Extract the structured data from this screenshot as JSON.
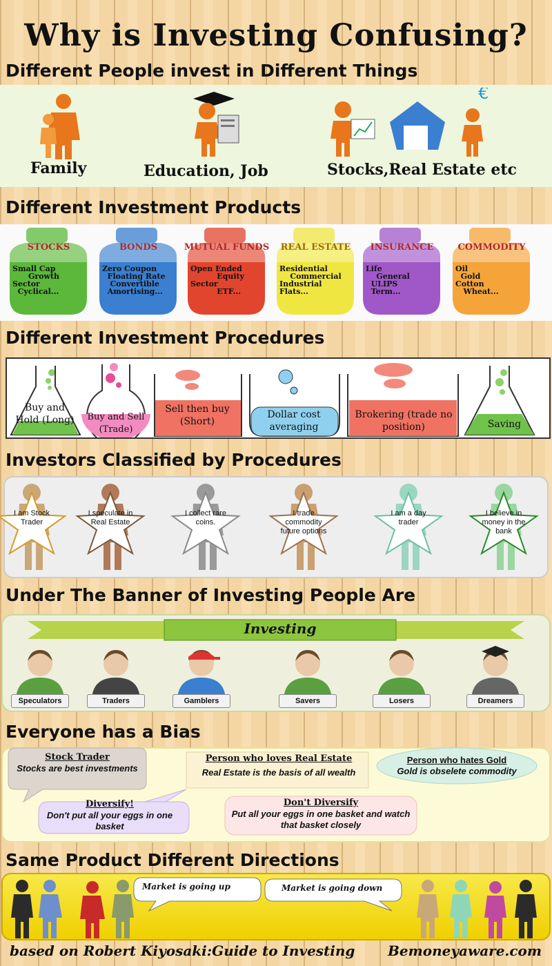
{
  "title": "Why is Investing Confusing?",
  "sections": [
    "Different People invest in Different Things",
    "Different Investment Products",
    "Different Investment Procedures",
    "Investors Classified by Procedures",
    "Under The Banner of Investing People Are",
    "Everyone has a Bias",
    "Same Product Different Directions"
  ],
  "things": [
    "Family",
    "Education, Job",
    "Stocks,Real Estate etc"
  ],
  "products": [
    {
      "name": "STOCKS",
      "items": "Small Cap\n      Growth\nSector\n  Cyclical...",
      "color": "#5cb83a"
    },
    {
      "name": "BONDS",
      "items": "Zero Coupon\n  Floating Rate\n   Convertible\n  Amortising...",
      "color": "#3a7fd0"
    },
    {
      "name": "MUTUAL FUNDS",
      "items": "Open Ended\n          Equity\nSector\n          ETF...",
      "color": "#e2452e"
    },
    {
      "name": "REAL ESTATE",
      "items": "Residential\n    Commercial\nIndustrial\nFlats...",
      "color": "#f0e642"
    },
    {
      "name": "INSURANCE",
      "items": "Life\n    General\n  ULIPS\n  Term...",
      "color": "#a058c8"
    },
    {
      "name": "COMMODITY",
      "items": "Oil\n  Gold\nCotton\n   Wheat...",
      "color": "#f5a43a"
    }
  ],
  "procedures": [
    "Buy and Hold (Long)",
    "Buy and Sell (Trade)",
    "Sell then buy (Short)",
    "Dollar cost averaging",
    "Brokering (trade no position)",
    "Saving"
  ],
  "investors": [
    "I am Stock Trader",
    "I speculate in Real Estate",
    "I collect rare coins.",
    "I trade commodity future options",
    "I am a day trader",
    "I believe in money in the bank"
  ],
  "banner": "Investing",
  "people": [
    "Speculators",
    "Traders",
    "Gamblers",
    "Savers",
    "Losers",
    "Dreamers"
  ],
  "bias": [
    {
      "head": "Stock Trader",
      "text": "Stocks are  best investments"
    },
    {
      "head": "Person who loves Real Estate",
      "text": "Real Estate is the basis of all wealth"
    },
    {
      "head": "Person who hates Gold",
      "text": "Gold is obselete commodity"
    },
    {
      "head": "Diversify!",
      "text": "Don't put all your eggs in one basket"
    },
    {
      "head": "Don't Diversify",
      "text": "Put all your eggs in one basket and watch that basket closely"
    }
  ],
  "directions": [
    "Market is going up",
    "Market is going down"
  ],
  "footer": {
    "left": "based on Robert Kiyosaki:Guide to Investing",
    "right": "Bemoneyaware.com"
  }
}
